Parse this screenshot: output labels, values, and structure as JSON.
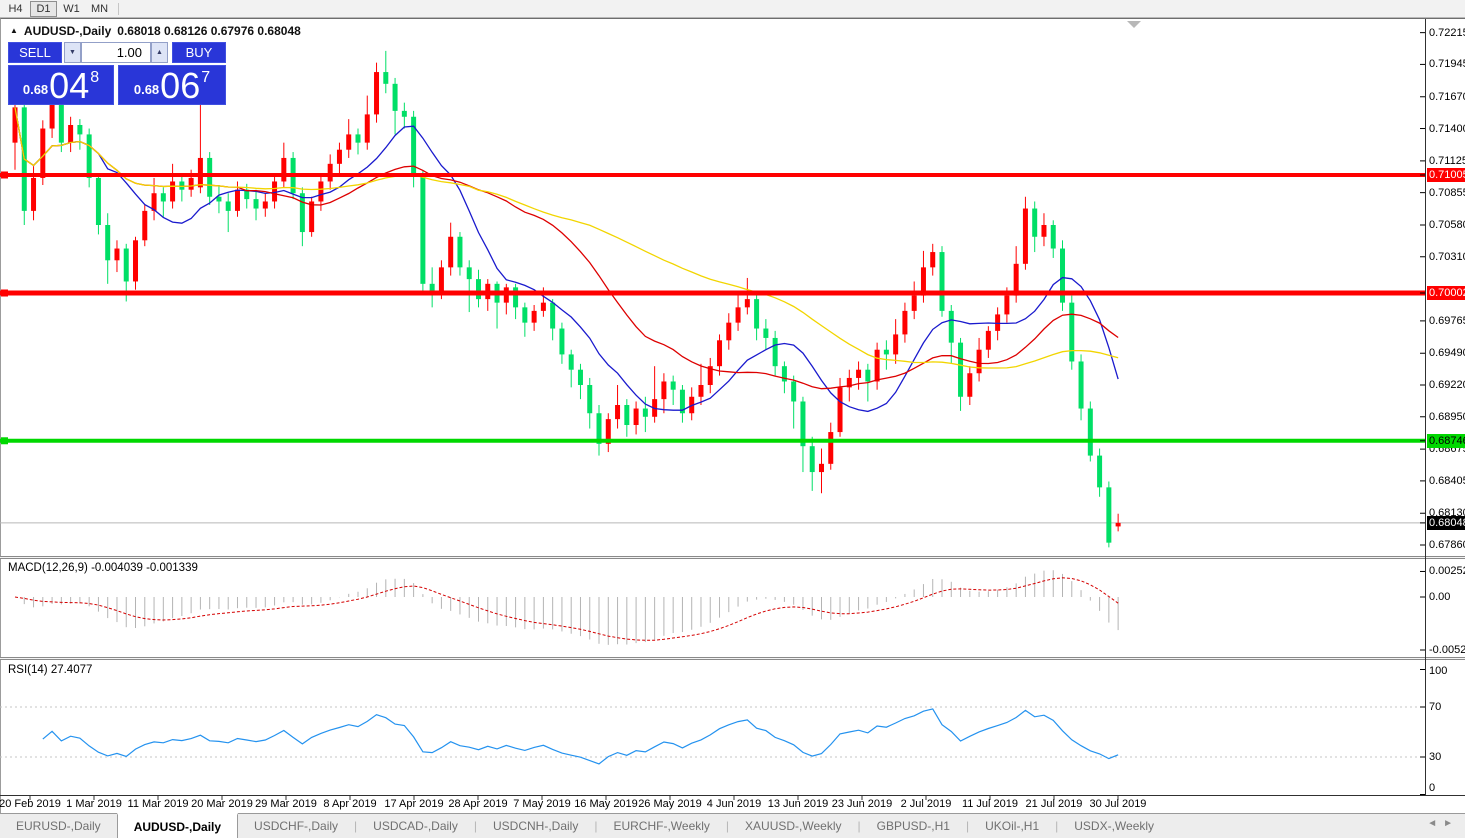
{
  "toolbar": {
    "timeframes": [
      {
        "label": "H4",
        "active": false
      },
      {
        "label": "D1",
        "active": true
      },
      {
        "label": "W1",
        "active": false
      },
      {
        "label": "MN",
        "active": false
      }
    ]
  },
  "title": {
    "collapse_arrow": "▲",
    "symbol": "AUDUSD-,Daily",
    "ohlc": "0.68018 0.68126 0.67976 0.68048"
  },
  "trade_panel": {
    "sell_label": "SELL",
    "buy_label": "BUY",
    "volume": "1.00",
    "spinner_down": "▼",
    "spinner_up": "▲",
    "sell_price": {
      "prefix": "0.68",
      "big": "04",
      "sup": "8"
    },
    "buy_price": {
      "prefix": "0.68",
      "big": "06",
      "sup": "7"
    }
  },
  "price_axis": {
    "ticks": [
      {
        "label": "0.72215",
        "price": 0.72215
      },
      {
        "label": "0.71945",
        "price": 0.71945
      },
      {
        "label": "0.71670",
        "price": 0.7167
      },
      {
        "label": "0.71400",
        "price": 0.714
      },
      {
        "label": "0.71125",
        "price": 0.71125
      },
      {
        "label": "0.70855",
        "price": 0.70855
      },
      {
        "label": "0.70580",
        "price": 0.7058
      },
      {
        "label": "0.70310",
        "price": 0.7031
      },
      {
        "label": "0.69765",
        "price": 0.69765
      },
      {
        "label": "0.69490",
        "price": 0.6949
      },
      {
        "label": "0.69220",
        "price": 0.6922
      },
      {
        "label": "0.68950",
        "price": 0.6895
      },
      {
        "label": "0.68675",
        "price": 0.68675
      },
      {
        "label": "0.68405",
        "price": 0.68405
      },
      {
        "label": "0.68130",
        "price": 0.6813
      },
      {
        "label": "0.67860",
        "price": 0.6786
      }
    ],
    "tags": [
      {
        "label": "0.71005",
        "price": 0.71005,
        "bg": "#ff0000",
        "fg": "#ffffff"
      },
      {
        "label": "0.70002",
        "price": 0.70002,
        "bg": "#ff0000",
        "fg": "#ffffff"
      },
      {
        "label": "0.68746",
        "price": 0.68746,
        "bg": "#00d800",
        "fg": "#000000"
      },
      {
        "label": "0.68048",
        "price": 0.68048,
        "bg": "#000000",
        "fg": "#ffffff"
      }
    ]
  },
  "macd_panel": {
    "label": "MACD(12,26,9) -0.004039 -0.001339",
    "axis": [
      {
        "label": "0.002522",
        "value": 0.002522
      },
      {
        "label": "0.00",
        "value": 0
      },
      {
        "label": "-0.005234",
        "value": -0.005234
      }
    ]
  },
  "rsi_panel": {
    "label": "RSI(14) 27.4077",
    "axis": [
      {
        "label": "100",
        "value": 100
      },
      {
        "label": "70",
        "value": 70
      },
      {
        "label": "30",
        "value": 30
      },
      {
        "label": "0",
        "value": 0
      }
    ]
  },
  "date_axis": [
    "20 Feb 2019",
    "1 Mar 2019",
    "11 Mar 2019",
    "20 Mar 2019",
    "29 Mar 2019",
    "8 Apr 2019",
    "17 Apr 2019",
    "28 Apr 2019",
    "7 May 2019",
    "16 May 2019",
    "26 May 2019",
    "4 Jun 2019",
    "13 Jun 2019",
    "23 Jun 2019",
    "2 Jul 2019",
    "11 Jul 2019",
    "21 Jul 2019",
    "30 Jul 2019"
  ],
  "tab_separator": "|",
  "tab_nav": {
    "left": "◄",
    "right": "►"
  },
  "tabs": [
    {
      "label": "EURUSD-,Daily",
      "active": false
    },
    {
      "label": "AUDUSD-,Daily",
      "active": true
    },
    {
      "label": "USDCHF-,Daily",
      "active": false
    },
    {
      "label": "USDCAD-,Daily",
      "active": false
    },
    {
      "label": "USDCNH-,Daily",
      "active": false
    },
    {
      "label": "EURCHF-,Weekly",
      "active": false
    },
    {
      "label": "XAUUSD-,Weekly",
      "active": false
    },
    {
      "label": "GBPUSD-,H1",
      "active": false
    },
    {
      "label": "UKOil-,H1",
      "active": false
    },
    {
      "label": "USDX-,Weekly",
      "active": false
    }
  ],
  "chart_data": {
    "type": "candlestick",
    "symbol": "AUDUSD-",
    "timeframe": "Daily",
    "up_color": "#ff0000",
    "down_color": "#00df66",
    "current_price": 0.68048,
    "open": 0.68018,
    "high": 0.68126,
    "low": 0.67976,
    "close": 0.68048,
    "hlines": [
      {
        "price": 0.71005,
        "color": "#ff0000",
        "width": 4
      },
      {
        "price": 0.70002,
        "color": "#ff0000",
        "width": 5
      },
      {
        "price": 0.68746,
        "color": "#00d800",
        "width": 4
      }
    ],
    "ma_overlays": [
      {
        "name": "ma-fast",
        "period": 10,
        "color": "#1a1acd"
      },
      {
        "name": "ma-medium",
        "period": 25,
        "color": "#dd0000"
      },
      {
        "name": "ma-slow",
        "period": 50,
        "color": "#f2d500"
      }
    ],
    "macd": {
      "fast": 12,
      "slow": 26,
      "signal": 9,
      "main_value": -0.004039,
      "signal_value": -0.001339,
      "hist_color": "#b4b4b4",
      "signal_color": "#d40000",
      "range": [
        0.002522,
        -0.005234
      ]
    },
    "rsi": {
      "period": 14,
      "value": 27.4077,
      "color": "#2492ef",
      "levels": [
        70,
        30
      ],
      "range": [
        0,
        100
      ]
    },
    "ohlc": [
      [
        0.7128,
        0.7168,
        0.7105,
        0.7158
      ],
      [
        0.7158,
        0.7163,
        0.7058,
        0.707
      ],
      [
        0.707,
        0.7108,
        0.7062,
        0.7098
      ],
      [
        0.7098,
        0.7147,
        0.7092,
        0.714
      ],
      [
        0.714,
        0.7168,
        0.7132,
        0.716
      ],
      [
        0.716,
        0.7165,
        0.712,
        0.7128
      ],
      [
        0.7128,
        0.715,
        0.712,
        0.7143
      ],
      [
        0.7143,
        0.7148,
        0.7122,
        0.7135
      ],
      [
        0.7135,
        0.714,
        0.709,
        0.7098
      ],
      [
        0.7098,
        0.7102,
        0.705,
        0.7058
      ],
      [
        0.7058,
        0.7068,
        0.7008,
        0.7028
      ],
      [
        0.7028,
        0.7045,
        0.7018,
        0.7038
      ],
      [
        0.7038,
        0.7042,
        0.6993,
        0.701
      ],
      [
        0.701,
        0.7048,
        0.7003,
        0.7045
      ],
      [
        0.7045,
        0.7075,
        0.704,
        0.707
      ],
      [
        0.707,
        0.7098,
        0.7062,
        0.7085
      ],
      [
        0.7085,
        0.709,
        0.7065,
        0.7078
      ],
      [
        0.7078,
        0.711,
        0.7072,
        0.7095
      ],
      [
        0.7095,
        0.71,
        0.7078,
        0.7088
      ],
      [
        0.7088,
        0.7105,
        0.7082,
        0.7098
      ],
      [
        0.709,
        0.7168,
        0.7085,
        0.7115
      ],
      [
        0.7115,
        0.712,
        0.7075,
        0.7082
      ],
      [
        0.7082,
        0.7092,
        0.7068,
        0.7078
      ],
      [
        0.7078,
        0.7085,
        0.7052,
        0.707
      ],
      [
        0.707,
        0.7095,
        0.7065,
        0.7088
      ],
      [
        0.7088,
        0.7093,
        0.7072,
        0.708
      ],
      [
        0.708,
        0.7088,
        0.7062,
        0.7072
      ],
      [
        0.7072,
        0.7085,
        0.7065,
        0.7078
      ],
      [
        0.7078,
        0.71,
        0.7072,
        0.7095
      ],
      [
        0.7095,
        0.7128,
        0.709,
        0.7115
      ],
      [
        0.7115,
        0.712,
        0.708,
        0.7085
      ],
      [
        0.7085,
        0.709,
        0.704,
        0.7052
      ],
      [
        0.7052,
        0.7082,
        0.7048,
        0.7078
      ],
      [
        0.7078,
        0.71,
        0.707,
        0.7095
      ],
      [
        0.7095,
        0.7118,
        0.7088,
        0.711
      ],
      [
        0.711,
        0.7128,
        0.71,
        0.7122
      ],
      [
        0.7122,
        0.7148,
        0.7115,
        0.7135
      ],
      [
        0.7135,
        0.714,
        0.7118,
        0.7128
      ],
      [
        0.7128,
        0.7168,
        0.7122,
        0.7152
      ],
      [
        0.7152,
        0.7196,
        0.7145,
        0.7188
      ],
      [
        0.7188,
        0.7206,
        0.717,
        0.7178
      ],
      [
        0.7178,
        0.7183,
        0.7135,
        0.7155
      ],
      [
        0.7155,
        0.7162,
        0.714,
        0.715
      ],
      [
        0.715,
        0.7155,
        0.709,
        0.7102
      ],
      [
        0.71,
        0.7104,
        0.7,
        0.7008
      ],
      [
        0.7008,
        0.7022,
        0.6988,
        0.7002
      ],
      [
        0.7002,
        0.7028,
        0.6995,
        0.7022
      ],
      [
        0.7022,
        0.706,
        0.7015,
        0.7048
      ],
      [
        0.7048,
        0.7052,
        0.7015,
        0.7022
      ],
      [
        0.7022,
        0.7028,
        0.6984,
        0.7012
      ],
      [
        0.7012,
        0.702,
        0.6988,
        0.6995
      ],
      [
        0.6995,
        0.7012,
        0.6985,
        0.7008
      ],
      [
        0.7008,
        0.701,
        0.697,
        0.6992
      ],
      [
        0.6992,
        0.7008,
        0.6982,
        0.7005
      ],
      [
        0.7005,
        0.7008,
        0.6978,
        0.6988
      ],
      [
        0.6988,
        0.6992,
        0.6963,
        0.6975
      ],
      [
        0.6975,
        0.699,
        0.6968,
        0.6985
      ],
      [
        0.6985,
        0.7005,
        0.698,
        0.6992
      ],
      [
        0.6992,
        0.6995,
        0.696,
        0.697
      ],
      [
        0.697,
        0.6975,
        0.694,
        0.6948
      ],
      [
        0.6948,
        0.6952,
        0.692,
        0.6935
      ],
      [
        0.6935,
        0.694,
        0.691,
        0.6922
      ],
      [
        0.6922,
        0.6928,
        0.6885,
        0.6898
      ],
      [
        0.6898,
        0.6905,
        0.6862,
        0.6872
      ],
      [
        0.6872,
        0.6898,
        0.6865,
        0.6893
      ],
      [
        0.6893,
        0.6922,
        0.6885,
        0.6905
      ],
      [
        0.6905,
        0.691,
        0.6878,
        0.6888
      ],
      [
        0.6888,
        0.6908,
        0.688,
        0.6902
      ],
      [
        0.6902,
        0.6912,
        0.6882,
        0.6895
      ],
      [
        0.6895,
        0.6938,
        0.689,
        0.691
      ],
      [
        0.691,
        0.6932,
        0.6898,
        0.6925
      ],
      [
        0.6925,
        0.693,
        0.6905,
        0.6918
      ],
      [
        0.6918,
        0.6922,
        0.689,
        0.6898
      ],
      [
        0.6898,
        0.692,
        0.6892,
        0.6912
      ],
      [
        0.6912,
        0.694,
        0.6905,
        0.6922
      ],
      [
        0.6922,
        0.6945,
        0.6915,
        0.6938
      ],
      [
        0.6938,
        0.6965,
        0.693,
        0.696
      ],
      [
        0.696,
        0.6983,
        0.6952,
        0.6975
      ],
      [
        0.6975,
        0.7,
        0.6968,
        0.6988
      ],
      [
        0.6988,
        0.7013,
        0.6982,
        0.6995
      ],
      [
        0.6995,
        0.7,
        0.696,
        0.697
      ],
      [
        0.697,
        0.6978,
        0.6952,
        0.6962
      ],
      [
        0.6962,
        0.6968,
        0.693,
        0.6938
      ],
      [
        0.6938,
        0.6942,
        0.6915,
        0.6925
      ],
      [
        0.6925,
        0.693,
        0.6885,
        0.6908
      ],
      [
        0.6908,
        0.6912,
        0.6848,
        0.687
      ],
      [
        0.687,
        0.6878,
        0.6832,
        0.6848
      ],
      [
        0.6848,
        0.6868,
        0.683,
        0.6855
      ],
      [
        0.6855,
        0.689,
        0.685,
        0.6882
      ],
      [
        0.6882,
        0.6928,
        0.6878,
        0.692
      ],
      [
        0.692,
        0.6935,
        0.6908,
        0.6928
      ],
      [
        0.6928,
        0.6942,
        0.6918,
        0.6935
      ],
      [
        0.6935,
        0.694,
        0.6908,
        0.6925
      ],
      [
        0.6925,
        0.6958,
        0.6918,
        0.6952
      ],
      [
        0.6952,
        0.696,
        0.6935,
        0.6948
      ],
      [
        0.6948,
        0.6978,
        0.694,
        0.6965
      ],
      [
        0.6965,
        0.6992,
        0.6958,
        0.6985
      ],
      [
        0.6985,
        0.701,
        0.6978,
        0.6998
      ],
      [
        0.6998,
        0.7036,
        0.6992,
        0.7022
      ],
      [
        0.7022,
        0.7042,
        0.7015,
        0.7035
      ],
      [
        0.7035,
        0.704,
        0.698,
        0.6985
      ],
      [
        0.6985,
        0.699,
        0.694,
        0.6958
      ],
      [
        0.6958,
        0.6962,
        0.69,
        0.6912
      ],
      [
        0.6912,
        0.6938,
        0.6905,
        0.6932
      ],
      [
        0.6932,
        0.6962,
        0.6925,
        0.6952
      ],
      [
        0.6952,
        0.6972,
        0.6945,
        0.6968
      ],
      [
        0.6968,
        0.6988,
        0.696,
        0.6982
      ],
      [
        0.6982,
        0.7005,
        0.6975,
        0.6998
      ],
      [
        0.6998,
        0.704,
        0.6992,
        0.7025
      ],
      [
        0.7025,
        0.7082,
        0.702,
        0.7072
      ],
      [
        0.7072,
        0.7078,
        0.7035,
        0.7048
      ],
      [
        0.7048,
        0.7068,
        0.704,
        0.7058
      ],
      [
        0.7058,
        0.7062,
        0.703,
        0.7038
      ],
      [
        0.7038,
        0.7045,
        0.6985,
        0.6992
      ],
      [
        0.6992,
        0.6998,
        0.6935,
        0.6942
      ],
      [
        0.6942,
        0.6948,
        0.6892,
        0.6902
      ],
      [
        0.6902,
        0.6908,
        0.6857,
        0.6862
      ],
      [
        0.6862,
        0.6868,
        0.6827,
        0.6835
      ],
      [
        0.6835,
        0.684,
        0.6784,
        0.6788
      ],
      [
        0.68018,
        0.68126,
        0.67976,
        0.68048
      ]
    ]
  }
}
